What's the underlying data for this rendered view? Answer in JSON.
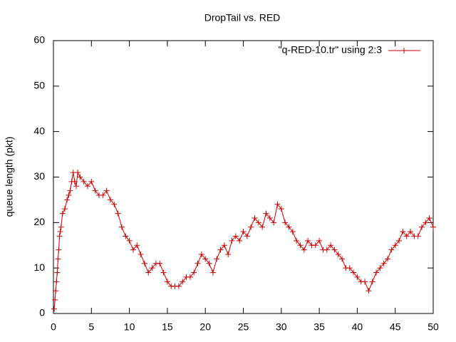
{
  "chart_data": {
    "type": "line",
    "title": "DropTail vs. RED",
    "ylabel": "queue length (pkt)",
    "x": [
      0.1,
      0.2,
      0.3,
      0.4,
      0.5,
      0.6,
      0.7,
      0.8,
      0.9,
      1.0,
      1.2,
      1.5,
      1.8,
      2.0,
      2.2,
      2.4,
      2.6,
      2.8,
      3.0,
      3.2,
      3.5,
      4.0,
      4.5,
      5.0,
      5.5,
      6.0,
      6.5,
      7.0,
      7.5,
      8.0,
      8.5,
      9.0,
      9.5,
      10.0,
      10.5,
      11.0,
      11.5,
      12.0,
      12.5,
      13.0,
      13.5,
      14.0,
      14.5,
      15.0,
      15.5,
      16.0,
      16.5,
      17.0,
      17.5,
      18.0,
      18.5,
      19.0,
      19.5,
      20.0,
      20.5,
      21.0,
      21.5,
      22.0,
      22.5,
      23.0,
      23.5,
      24.0,
      24.5,
      25.0,
      25.5,
      26.0,
      26.5,
      27.0,
      27.5,
      28.0,
      28.5,
      29.0,
      29.5,
      30.0,
      30.5,
      31.0,
      31.5,
      32.0,
      32.5,
      33.0,
      33.5,
      34.0,
      34.5,
      35.0,
      35.5,
      36.0,
      36.5,
      37.0,
      37.5,
      38.0,
      38.5,
      39.0,
      39.5,
      40.0,
      40.5,
      41.0,
      41.5,
      42.0,
      42.5,
      43.0,
      43.5,
      44.0,
      44.5,
      45.0,
      45.5,
      46.0,
      46.5,
      47.0,
      47.5,
      48.0,
      48.5,
      49.0,
      49.5,
      50.0
    ],
    "series": [
      {
        "name": "\"q-RED-10.tr\" using 2:3",
        "color": "#cc0000",
        "values": [
          1,
          3,
          5,
          7,
          9,
          12,
          14,
          17,
          18,
          19,
          22,
          23,
          25,
          26,
          27,
          29,
          31,
          29,
          28,
          31,
          30,
          29,
          28,
          29,
          27,
          26,
          26,
          27,
          25,
          24,
          22,
          19,
          17,
          16,
          14,
          15,
          13,
          11,
          9,
          10,
          11,
          11,
          9,
          7,
          6,
          6,
          6,
          7,
          8,
          8,
          9,
          11,
          13,
          12,
          11,
          9,
          12,
          14,
          15,
          13,
          16,
          17,
          16,
          18,
          17,
          19,
          21,
          20,
          19,
          22,
          21,
          20,
          24,
          23,
          20,
          19,
          18,
          16,
          15,
          14,
          16,
          15,
          15,
          16,
          14,
          14,
          15,
          14,
          13,
          12,
          10,
          10,
          9,
          8,
          7,
          7,
          5,
          7,
          9,
          10,
          11,
          12,
          14,
          15,
          16,
          18,
          17,
          18,
          17,
          17,
          19,
          20,
          21,
          19
        ]
      }
    ],
    "xlim": [
      0,
      50
    ],
    "xticks": [
      0,
      5,
      10,
      15,
      20,
      25,
      30,
      35,
      40,
      45,
      50
    ],
    "ylim": [
      0,
      60
    ],
    "yticks": [
      0,
      10,
      20,
      30,
      40,
      50,
      60
    ],
    "grid": false,
    "legend": "top-right"
  }
}
